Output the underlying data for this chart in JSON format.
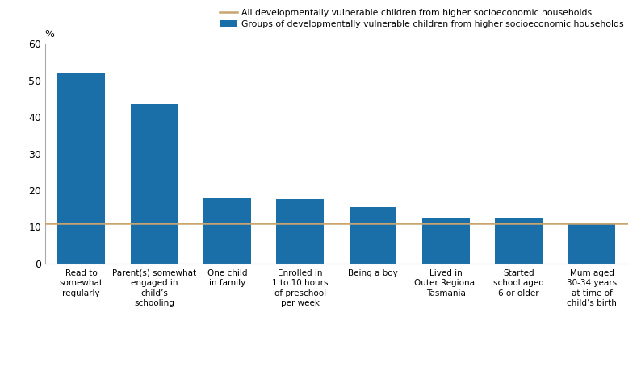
{
  "categories": [
    "Read to\nsomewhat\nregularly",
    "Parent(s) somewhat\nengaged in\nchild’s\nschooling",
    "One child\nin family",
    "Enrolled in\n1 to 10 hours\nof preschool\nper week",
    "Being a boy",
    "Lived in\nOuter Regional\nTasmania",
    "Started\nschool aged\n6 or older",
    "Mum aged\n30-34 years\nat time of\nchild’s birth"
  ],
  "bar_values": [
    52.0,
    43.5,
    18.0,
    17.5,
    15.5,
    12.5,
    12.5,
    11.0
  ],
  "reference_line": 11.0,
  "bar_color": "#1a6fa8",
  "reference_line_color": "#c8a46e",
  "legend_line_label": "All developmentally vulnerable children from higher socioeconomic households",
  "legend_bar_label": "Groups of developmentally vulnerable children from higher socioeconomic households",
  "ylabel": "%",
  "ylim": [
    0,
    60
  ],
  "yticks": [
    0,
    10,
    20,
    30,
    40,
    50,
    60
  ],
  "background_color": "#ffffff",
  "bar_width": 0.65
}
